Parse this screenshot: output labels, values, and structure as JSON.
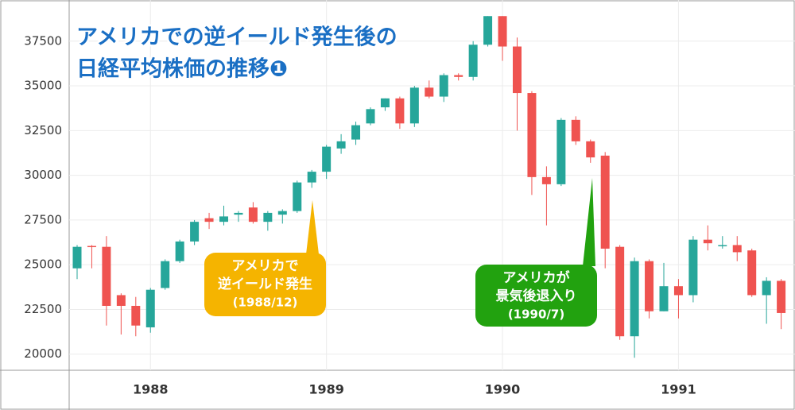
{
  "chart_data": {
    "type": "candlestick",
    "title": [
      "アメリカでの逆イールド発生後の",
      "日経平均株価の推移❶"
    ],
    "categories": [
      null,
      null,
      null,
      null,
      null,
      "1988",
      null,
      null,
      null,
      null,
      null,
      null,
      null,
      null,
      null,
      null,
      null,
      "1989",
      null,
      null,
      null,
      null,
      null,
      null,
      null,
      null,
      null,
      null,
      null,
      "1990",
      null,
      null,
      null,
      null,
      null,
      null,
      null,
      null,
      null,
      null,
      null,
      "1991",
      null,
      null,
      null,
      null,
      null,
      null,
      null
    ],
    "series": [
      {
        "name": null,
        "up_color": "#26a69a",
        "down_color": "#ef5350",
        "open": [
          24800,
          26050,
          26000,
          23300,
          22700,
          21500,
          23700,
          25200,
          26300,
          27600,
          27400,
          27800,
          28200,
          27400,
          27800,
          28000,
          29600,
          30200,
          31500,
          32000,
          32900,
          33800,
          34300,
          32900,
          34900,
          34400,
          35600,
          35500,
          37300,
          38900,
          37200,
          34600,
          29900,
          29500,
          33100,
          31900,
          31100,
          26000,
          21000,
          25200,
          22400,
          23800,
          23300,
          26400,
          26100,
          26100,
          25800,
          23300,
          24100
        ],
        "high": [
          26100,
          26100,
          26600,
          23400,
          23200,
          23700,
          25300,
          26400,
          27500,
          27900,
          28300,
          28000,
          28500,
          28000,
          28100,
          29700,
          30300,
          31700,
          32300,
          33000,
          33800,
          34300,
          34400,
          35000,
          35300,
          35700,
          35700,
          37500,
          38900,
          38900,
          37700,
          34700,
          30500,
          33200,
          33300,
          32000,
          31300,
          26100,
          25400,
          25300,
          25100,
          24200,
          26600,
          27200,
          26600,
          26600,
          25900,
          24300,
          24200
        ],
        "low": [
          24200,
          24800,
          21600,
          21100,
          21000,
          21200,
          23600,
          25100,
          26100,
          27000,
          27200,
          27400,
          27300,
          26900,
          27300,
          27900,
          29300,
          29800,
          31200,
          31700,
          32800,
          33600,
          32600,
          32700,
          34300,
          34100,
          35300,
          35300,
          37200,
          36400,
          32500,
          28900,
          27200,
          29400,
          31700,
          30700,
          24800,
          20800,
          19800,
          22000,
          22400,
          22000,
          22900,
          25800,
          25900,
          25200,
          23200,
          21700,
          21400
        ],
        "close": [
          26000,
          26000,
          22700,
          22700,
          21600,
          23600,
          25200,
          26300,
          27400,
          27400,
          27700,
          27900,
          27400,
          27900,
          28000,
          29600,
          30200,
          31600,
          31900,
          32800,
          33700,
          34300,
          32900,
          34900,
          34400,
          35600,
          35500,
          37300,
          38900,
          37200,
          34600,
          29900,
          29500,
          33100,
          31900,
          31000,
          25900,
          21000,
          25200,
          22400,
          23800,
          23300,
          26400,
          26200,
          26100,
          25700,
          23300,
          24100,
          22300
        ]
      }
    ],
    "ylim": [
      19100,
      39800
    ],
    "yticks": [
      20000,
      22500,
      25000,
      27500,
      30000,
      32500,
      35000,
      37500
    ],
    "grid": true,
    "annotations": [
      {
        "lines": [
          "アメリカで",
          "逆イールド発生",
          "(1988/12)"
        ],
        "color": "#f5b400"
      },
      {
        "lines": [
          "アメリカが",
          "景気後退入り",
          "(1990/7)"
        ],
        "color": "#22a20f"
      }
    ]
  }
}
